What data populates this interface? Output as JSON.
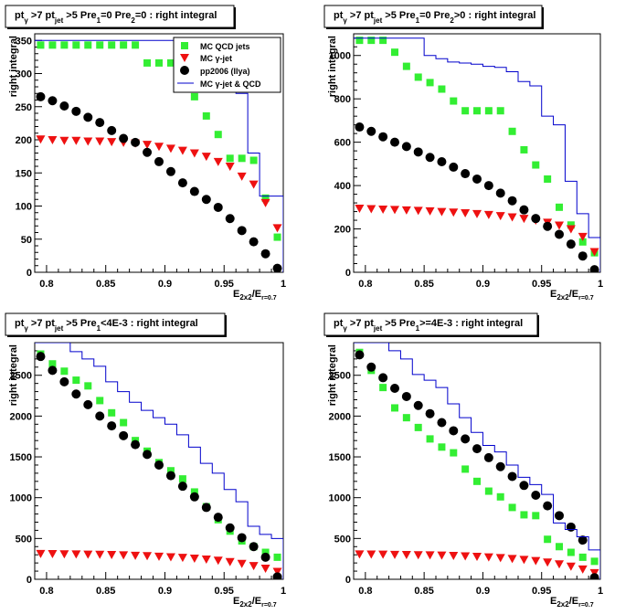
{
  "colors": {
    "qcd": "#33ee33",
    "gjet": "#ee1111",
    "data": "#000000",
    "sum": "#0000cc",
    "frame": "#000000",
    "background": "#ffffff"
  },
  "chart_data": [
    {
      "type": "scatter",
      "title": {
        "main": "pt",
        "s1": "γ",
        "g1": " >7  pt",
        "s2": "jet",
        "rest": " >5 Pre",
        "s3": "1",
        "rest2": "=0 Pre",
        "s4": "2",
        "rest3": "=0 : right integral"
      },
      "ylabel": "right integral",
      "xlabel": {
        "a": "E",
        "a_sub": "2x2",
        "b": "/E",
        "b_sub": "r=0.7"
      },
      "xlim": [
        0.79,
        1.0
      ],
      "ylim": [
        0,
        360
      ],
      "xticks": [
        "0.8",
        "0.85",
        "0.9",
        "0.95",
        "1"
      ],
      "yticks": [
        {
          "v": 0,
          "t": "0"
        },
        {
          "v": 50,
          "t": "50"
        },
        {
          "v": 100,
          "t": "100"
        },
        {
          "v": 150,
          "t": "150"
        },
        {
          "v": 200,
          "t": "200"
        },
        {
          "v": 250,
          "t": "250"
        },
        {
          "v": 300,
          "t": "300"
        },
        {
          "v": 350,
          "t": "350"
        }
      ],
      "legend": {
        "qcd": "MC QCD jets",
        "gjet_a": "MC  ",
        "gjet_b": "γ-jet",
        "data": "pp2006 (Ilya)",
        "sum_a": "MC  ",
        "sum_b": "γ-jet & QCD"
      },
      "x": [
        0.795,
        0.805,
        0.815,
        0.825,
        0.835,
        0.845,
        0.855,
        0.865,
        0.875,
        0.885,
        0.895,
        0.905,
        0.915,
        0.925,
        0.935,
        0.945,
        0.955,
        0.965,
        0.975,
        0.985,
        0.995
      ],
      "series": [
        {
          "key": "qcd",
          "values": [
            343,
            343,
            343,
            343,
            343,
            343,
            343,
            343,
            343,
            316,
            316,
            316,
            287,
            265,
            236,
            208,
            172,
            172,
            169,
            112,
            53
          ]
        },
        {
          "key": "gjet",
          "values": [
            201,
            200,
            199,
            199,
            198,
            198,
            197,
            196,
            195,
            193,
            190,
            187,
            184,
            180,
            175,
            167,
            160,
            145,
            133,
            105,
            67
          ]
        },
        {
          "key": "data",
          "values": [
            265,
            259,
            251,
            243,
            234,
            226,
            214,
            202,
            196,
            181,
            167,
            152,
            135,
            122,
            110,
            98,
            81,
            63,
            46,
            28,
            6
          ]
        },
        {
          "key": "sum",
          "values": [
            350,
            350,
            350,
            350,
            350,
            350,
            350,
            350,
            350,
            350,
            350,
            350,
            350,
            350,
            350,
            350,
            350,
            270,
            180,
            115,
            115
          ]
        }
      ]
    },
    {
      "type": "scatter",
      "title": {
        "main": "pt",
        "s1": "γ",
        "g1": " >7  pt",
        "s2": "jet",
        "rest": " >5 Pre",
        "s3": "1",
        "rest2": "=0 Pre",
        "s4": "2",
        "rest3": ">0 : right integral"
      },
      "ylabel": "right integral",
      "xlabel": {
        "a": "E",
        "a_sub": "2x2",
        "b": "/E",
        "b_sub": "r=0.7"
      },
      "xlim": [
        0.79,
        1.0
      ],
      "ylim": [
        0,
        1100
      ],
      "xticks": [
        "0.8",
        "0.85",
        "0.9",
        "0.95",
        "1"
      ],
      "yticks": [
        {
          "v": 0,
          "t": "0"
        },
        {
          "v": 200,
          "t": "200"
        },
        {
          "v": 400,
          "t": "400"
        },
        {
          "v": 600,
          "t": "600"
        },
        {
          "v": 800,
          "t": "800"
        },
        {
          "v": 1000,
          "t": "1000"
        }
      ],
      "x": [
        0.795,
        0.805,
        0.815,
        0.825,
        0.835,
        0.845,
        0.855,
        0.865,
        0.875,
        0.885,
        0.895,
        0.905,
        0.915,
        0.925,
        0.935,
        0.945,
        0.955,
        0.965,
        0.975,
        0.985,
        0.995
      ],
      "series": [
        {
          "key": "qcd",
          "values": [
            1070,
            1070,
            1070,
            1015,
            950,
            900,
            875,
            845,
            790,
            745,
            745,
            745,
            745,
            650,
            565,
            495,
            430,
            300,
            218,
            140,
            90
          ]
        },
        {
          "key": "gjet",
          "values": [
            295,
            293,
            291,
            289,
            287,
            285,
            283,
            280,
            277,
            274,
            270,
            266,
            261,
            255,
            248,
            240,
            230,
            217,
            200,
            165,
            95
          ]
        },
        {
          "key": "data",
          "values": [
            670,
            650,
            625,
            600,
            580,
            555,
            530,
            510,
            485,
            455,
            430,
            400,
            365,
            330,
            288,
            248,
            212,
            175,
            130,
            75,
            12
          ]
        },
        {
          "key": "sum",
          "values": [
            1080,
            1080,
            1080,
            1080,
            1080,
            1080,
            1000,
            985,
            970,
            965,
            960,
            950,
            945,
            925,
            880,
            860,
            720,
            680,
            420,
            270,
            160
          ]
        }
      ]
    },
    {
      "type": "scatter",
      "title": {
        "main": "pt",
        "s1": "γ",
        "g1": " >7  pt",
        "s2": "jet",
        "rest": " >5 Pre",
        "s3": "1",
        "rest2": "<4E-3 : right integral",
        "s4": "",
        "rest3": ""
      },
      "ylabel": "right integral",
      "xlabel": {
        "a": "E",
        "a_sub": "2x2",
        "b": "/E",
        "b_sub": "r=0.7"
      },
      "xlim": [
        0.79,
        1.0
      ],
      "ylim": [
        0,
        2900
      ],
      "xticks": [
        "0.8",
        "0.85",
        "0.9",
        "0.95",
        "1"
      ],
      "yticks": [
        {
          "v": 0,
          "t": "0"
        },
        {
          "v": 500,
          "t": "500"
        },
        {
          "v": 1000,
          "t": "1000"
        },
        {
          "v": 1500,
          "t": "1500"
        },
        {
          "v": 2000,
          "t": "2000"
        },
        {
          "v": 2500,
          "t": "2500"
        }
      ],
      "x": [
        0.795,
        0.805,
        0.815,
        0.825,
        0.835,
        0.845,
        0.855,
        0.865,
        0.875,
        0.885,
        0.895,
        0.905,
        0.915,
        0.925,
        0.935,
        0.945,
        0.955,
        0.965,
        0.975,
        0.985,
        0.995
      ],
      "series": [
        {
          "key": "qcd",
          "values": [
            2760,
            2640,
            2550,
            2440,
            2370,
            2190,
            2040,
            1920,
            1700,
            1570,
            1430,
            1330,
            1230,
            1070,
            890,
            730,
            590,
            470,
            400,
            330,
            270
          ]
        },
        {
          "key": "gjet",
          "values": [
            315,
            313,
            311,
            309,
            307,
            305,
            302,
            298,
            293,
            288,
            282,
            275,
            267,
            258,
            247,
            233,
            215,
            193,
            167,
            135,
            95
          ]
        },
        {
          "key": "data",
          "values": [
            2730,
            2560,
            2420,
            2270,
            2140,
            2000,
            1880,
            1760,
            1650,
            1530,
            1400,
            1270,
            1140,
            1010,
            880,
            760,
            630,
            510,
            400,
            270,
            30
          ]
        },
        {
          "key": "sum",
          "values": [
            2900,
            2900,
            2900,
            2790,
            2700,
            2610,
            2420,
            2300,
            2170,
            2070,
            1980,
            1900,
            1770,
            1620,
            1420,
            1300,
            1100,
            950,
            650,
            550,
            500
          ]
        }
      ]
    },
    {
      "type": "scatter",
      "title": {
        "main": "pt",
        "s1": "γ",
        "g1": " >7  pt",
        "s2": "jet",
        "rest": " >5 Pre",
        "s3": "1",
        "rest2": ">=4E-3 : right integral",
        "s4": "",
        "rest3": ""
      },
      "ylabel": "right integral",
      "xlabel": {
        "a": "E",
        "a_sub": "2x2",
        "b": "/E",
        "b_sub": "r=0.7"
      },
      "xlim": [
        0.79,
        1.0
      ],
      "ylim": [
        0,
        2900
      ],
      "xticks": [
        "0.8",
        "0.85",
        "0.9",
        "0.95",
        "1"
      ],
      "yticks": [
        {
          "v": 0,
          "t": "0"
        },
        {
          "v": 500,
          "t": "500"
        },
        {
          "v": 1000,
          "t": "1000"
        },
        {
          "v": 1500,
          "t": "1500"
        },
        {
          "v": 2000,
          "t": "2000"
        },
        {
          "v": 2500,
          "t": "2500"
        }
      ],
      "x": [
        0.795,
        0.805,
        0.815,
        0.825,
        0.835,
        0.845,
        0.855,
        0.865,
        0.875,
        0.885,
        0.895,
        0.905,
        0.915,
        0.925,
        0.935,
        0.945,
        0.955,
        0.965,
        0.975,
        0.985,
        0.995
      ],
      "series": [
        {
          "key": "qcd",
          "values": [
            2780,
            2560,
            2350,
            2100,
            1980,
            1860,
            1720,
            1620,
            1550,
            1350,
            1200,
            1080,
            1010,
            880,
            790,
            780,
            490,
            400,
            330,
            270,
            220
          ]
        },
        {
          "key": "gjet",
          "values": [
            310,
            308,
            306,
            304,
            302,
            300,
            298,
            295,
            291,
            286,
            280,
            273,
            264,
            254,
            242,
            228,
            210,
            188,
            160,
            125,
            80
          ]
        },
        {
          "key": "data",
          "values": [
            2750,
            2600,
            2470,
            2340,
            2240,
            2130,
            2030,
            1920,
            1820,
            1720,
            1600,
            1490,
            1380,
            1260,
            1150,
            1030,
            900,
            780,
            640,
            480,
            20
          ]
        },
        {
          "key": "sum",
          "values": [
            2900,
            2900,
            2900,
            2800,
            2700,
            2510,
            2440,
            2350,
            2150,
            1980,
            1800,
            1640,
            1560,
            1400,
            1250,
            1160,
            1040,
            690,
            610,
            520,
            360
          ]
        }
      ]
    }
  ]
}
